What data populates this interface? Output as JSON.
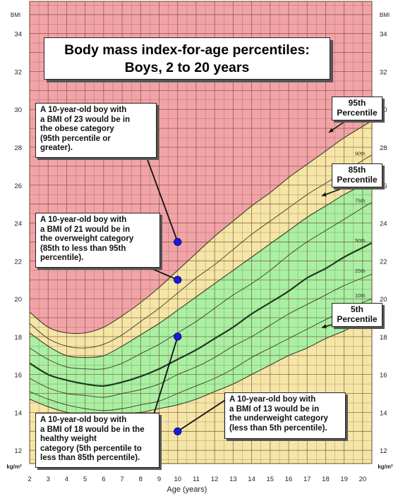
{
  "chart_data": {
    "type": "line",
    "title_lines": [
      "Body mass index-for-age percentiles:",
      "Boys, 2 to 20 years"
    ],
    "xlabel": "Age (years)",
    "ylabel": "BMI",
    "yunit": "kg/m²",
    "xlim": [
      2,
      20.5
    ],
    "ylim": [
      11.3,
      35.7
    ],
    "x_ticks": [
      2,
      3,
      4,
      5,
      6,
      7,
      8,
      9,
      10,
      11,
      12,
      13,
      14,
      15,
      16,
      17,
      18,
      19,
      20
    ],
    "y_ticks": [
      12,
      14,
      16,
      18,
      20,
      22,
      24,
      26,
      28,
      30,
      32,
      34
    ],
    "grid": true,
    "x": [
      2,
      3,
      4,
      5,
      6,
      7,
      8,
      9,
      10,
      11,
      12,
      13,
      14,
      15,
      16,
      17,
      18,
      19,
      20
    ],
    "series": [
      {
        "name": "5th",
        "values": [
          14.7,
          14.3,
          14.0,
          13.8,
          13.8,
          13.9,
          14.0,
          14.2,
          14.4,
          14.7,
          15.1,
          15.5,
          16.0,
          16.5,
          17.0,
          17.4,
          17.9,
          18.3,
          18.8
        ]
      },
      {
        "name": "10th",
        "values": [
          15.1,
          14.7,
          14.4,
          14.2,
          14.1,
          14.2,
          14.4,
          14.6,
          15.0,
          15.4,
          15.8,
          16.3,
          16.9,
          17.4,
          17.9,
          18.4,
          18.9,
          19.4,
          19.8
        ]
      },
      {
        "name": "25th",
        "values": [
          15.8,
          15.3,
          15.0,
          14.9,
          14.8,
          15.0,
          15.2,
          15.5,
          16.0,
          16.4,
          16.9,
          17.5,
          18.0,
          18.6,
          19.2,
          19.7,
          20.2,
          20.7,
          21.1
        ]
      },
      {
        "name": "50th",
        "values": [
          16.6,
          16.0,
          15.7,
          15.5,
          15.4,
          15.6,
          15.9,
          16.3,
          16.8,
          17.3,
          17.9,
          18.5,
          19.2,
          19.8,
          20.4,
          21.1,
          21.6,
          22.2,
          22.7
        ]
      },
      {
        "name": "75th",
        "values": [
          17.4,
          16.8,
          16.4,
          16.3,
          16.3,
          16.6,
          17.1,
          17.6,
          18.2,
          18.8,
          19.5,
          20.2,
          20.8,
          21.5,
          22.3,
          23.0,
          23.6,
          24.2,
          24.8
        ]
      },
      {
        "name": "85th",
        "values": [
          18.2,
          17.5,
          17.0,
          16.9,
          17.0,
          17.5,
          18.1,
          18.7,
          19.4,
          20.1,
          20.8,
          21.5,
          22.2,
          22.9,
          23.6,
          24.3,
          24.9,
          25.5,
          26.0
        ]
      },
      {
        "name": "90th",
        "values": [
          18.7,
          17.9,
          17.5,
          17.4,
          17.6,
          18.1,
          18.8,
          19.5,
          20.3,
          21.1,
          21.8,
          22.6,
          23.4,
          24.1,
          24.8,
          25.5,
          26.1,
          26.7,
          27.3
        ]
      },
      {
        "name": "95th",
        "values": [
          19.3,
          18.5,
          18.2,
          18.2,
          18.5,
          19.1,
          19.8,
          20.6,
          21.5,
          22.4,
          23.3,
          24.1,
          24.9,
          25.6,
          26.4,
          27.1,
          27.8,
          28.5,
          29.1
        ]
      }
    ],
    "zones": [
      {
        "label": "obese",
        "color": "#f2a3a8"
      },
      {
        "label": "overweight",
        "color": "#f5e5a6"
      },
      {
        "label": "healthy weight",
        "color": "#a9f0a3"
      },
      {
        "label": "underweight",
        "color": "#f5e5a6"
      }
    ],
    "line_labels": [
      "90th",
      "75th",
      "50th",
      "25th",
      "10th"
    ],
    "points": [
      {
        "x": 10,
        "y": 23
      },
      {
        "x": 10,
        "y": 21
      },
      {
        "x": 10,
        "y": 18
      },
      {
        "x": 10,
        "y": 13
      }
    ],
    "point_color": "#1a1adb"
  },
  "callouts": {
    "obese": [
      "A 10-year-old boy with",
      "a BMI of 23 would be in",
      "the obese category",
      "(95th percentile or",
      "greater)."
    ],
    "overweight": [
      "A 10-year-old boy with",
      "a BMI of 21 would be in",
      "the overweight category",
      "(85th to less than 95th",
      "percentile)."
    ],
    "healthy": [
      "A 10-year-old boy with",
      "a BMI of 18 would be in the",
      "healthy weight",
      "category (5th percentile to",
      "less than 85th percentile)."
    ],
    "underweight": [
      "A 10-year-old boy with",
      "a BMI of 13 would be in",
      "the underweight category",
      "(less than 5th percentile)."
    ]
  },
  "percentile_boxes": {
    "p95": [
      "95th",
      "Percentile"
    ],
    "p85": [
      "85th",
      "Percentile"
    ],
    "p5": [
      "5th",
      "Percentile"
    ]
  }
}
